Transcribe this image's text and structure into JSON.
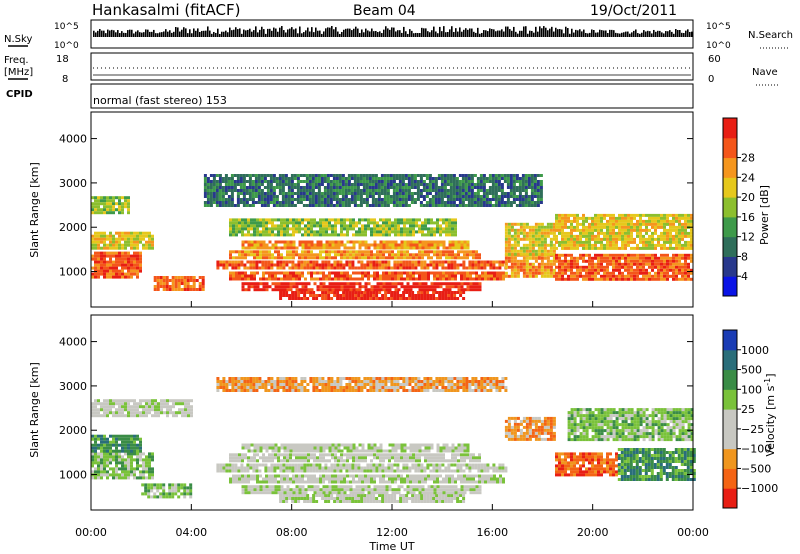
{
  "header": {
    "station": "Hankasalmi (fitACF)",
    "beam": "Beam 04",
    "date": "19/Oct/2011"
  },
  "top_panels": {
    "nsky": {
      "label": "N.Sky",
      "ticks_left": [
        "10^5",
        "10^0"
      ],
      "ticks_right": [
        "10^5",
        "10^0"
      ],
      "right_label": "N.Search"
    },
    "freq": {
      "label_line1": "Freq.",
      "label_line2": "[MHz]",
      "ticks_left": [
        "18",
        "8"
      ],
      "ticks_right": [
        "60",
        "0"
      ],
      "right_label": "Nave"
    },
    "cpid": {
      "label": "CPID",
      "text": "normal (fast stereo) 153"
    }
  },
  "chart_data": [
    {
      "type": "heatmap",
      "name": "power",
      "ylabel": "Slant Range [km]",
      "xlabel": "",
      "yticks": [
        "1000",
        "2000",
        "3000",
        "4000"
      ],
      "xlim": [
        0,
        24
      ],
      "ylim": [
        200,
        4600
      ],
      "colorbar": {
        "title": "Power [dB]",
        "ticks": [
          "4",
          "8",
          "12",
          "16",
          "20",
          "24",
          "28"
        ],
        "colors": [
          "#0a14e6",
          "#28388c",
          "#2f6e5a",
          "#3e9a4a",
          "#8cbf2e",
          "#e6c81c",
          "#f5961e",
          "#f4561a",
          "#e81e14"
        ]
      },
      "bands": [
        {
          "r0": 360,
          "r1": 560,
          "t0": 7.5,
          "t1": 14.8,
          "level": 8
        },
        {
          "r0": 620,
          "r1": 760,
          "t0": 6.0,
          "t1": 15.5,
          "level": 8
        },
        {
          "r0": 820,
          "r1": 1000,
          "t0": 5.5,
          "t1": 16.5,
          "level": 7
        },
        {
          "r0": 1050,
          "r1": 1250,
          "t0": 5.0,
          "t1": 16.5,
          "level": 7
        },
        {
          "r0": 1300,
          "r1": 1480,
          "t0": 5.5,
          "t1": 15.5,
          "level": 6
        },
        {
          "r0": 1560,
          "r1": 1700,
          "t0": 6.0,
          "t1": 15.0,
          "level": 6
        },
        {
          "r0": 900,
          "r1": 1450,
          "t0": 0.0,
          "t1": 2.0,
          "level": 7
        },
        {
          "r0": 1500,
          "r1": 1900,
          "t0": 0.0,
          "t1": 2.5,
          "level": 5
        },
        {
          "r0": 2300,
          "r1": 2700,
          "t0": 0.0,
          "t1": 1.5,
          "level": 4
        },
        {
          "r0": 600,
          "r1": 900,
          "t0": 2.5,
          "t1": 4.5,
          "level": 7
        },
        {
          "r0": 900,
          "r1": 1400,
          "t0": 16.5,
          "t1": 18.5,
          "level": 6
        },
        {
          "r0": 1400,
          "r1": 2100,
          "t0": 16.5,
          "t1": 18.5,
          "level": 5
        },
        {
          "r0": 800,
          "r1": 1400,
          "t0": 18.5,
          "t1": 24.0,
          "level": 7
        },
        {
          "r0": 1500,
          "r1": 2300,
          "t0": 18.5,
          "t1": 24.0,
          "level": 5
        },
        {
          "r0": 2500,
          "r1": 3200,
          "t0": 4.5,
          "t1": 18.0,
          "level": 2
        },
        {
          "r0": 1800,
          "r1": 2200,
          "t0": 5.5,
          "t1": 14.5,
          "level": 4
        }
      ]
    },
    {
      "type": "heatmap",
      "name": "velocity",
      "ylabel": "Slant Range [km]",
      "xlabel": "Time UT",
      "xticks": [
        "00:00",
        "04:00",
        "08:00",
        "12:00",
        "16:00",
        "20:00",
        "00:00"
      ],
      "yticks": [
        "1000",
        "2000",
        "3000",
        "4000"
      ],
      "xlim": [
        0,
        24
      ],
      "ylim": [
        200,
        4600
      ],
      "colorbar": {
        "title": "Velocity [m s",
        "title_sup": "-1",
        "title_end": "]",
        "ticks": [
          "1000",
          "500",
          "100",
          "25",
          "−25",
          "−100",
          "−500",
          "−1000"
        ],
        "colors": [
          "#1a3cb4",
          "#2a6e7a",
          "#3a8c46",
          "#7ac23a",
          "#c8c8c2",
          "#c8c8c2",
          "#f0961e",
          "#f46414",
          "#e81e14"
        ]
      },
      "bands": [
        {
          "r0": 360,
          "r1": 560,
          "t0": 7.5,
          "t1": 14.8,
          "level": 4
        },
        {
          "r0": 620,
          "r1": 760,
          "t0": 6.0,
          "t1": 15.5,
          "level": 4
        },
        {
          "r0": 820,
          "r1": 1000,
          "t0": 5.5,
          "t1": 16.5,
          "level": 4
        },
        {
          "r0": 1050,
          "r1": 1250,
          "t0": 5.0,
          "t1": 16.5,
          "level": 4
        },
        {
          "r0": 1300,
          "r1": 1480,
          "t0": 5.5,
          "t1": 15.5,
          "level": 4
        },
        {
          "r0": 1560,
          "r1": 1700,
          "t0": 6.0,
          "t1": 15.0,
          "level": 4
        },
        {
          "r0": 2300,
          "r1": 2700,
          "t0": 0.0,
          "t1": 4.0,
          "level": 4
        },
        {
          "r0": 900,
          "r1": 1500,
          "t0": 0.0,
          "t1": 2.5,
          "level": 3
        },
        {
          "r0": 1500,
          "r1": 1900,
          "t0": 0.0,
          "t1": 2.0,
          "level": 2
        },
        {
          "r0": 500,
          "r1": 800,
          "t0": 2.0,
          "t1": 4.0,
          "level": 3
        },
        {
          "r0": 1000,
          "r1": 1500,
          "t0": 18.5,
          "t1": 21.0,
          "level": 7
        },
        {
          "r0": 1800,
          "r1": 2300,
          "t0": 16.5,
          "t1": 18.5,
          "level": 6
        },
        {
          "r0": 900,
          "r1": 1600,
          "t0": 21.0,
          "t1": 24.0,
          "level": 2
        },
        {
          "r0": 1800,
          "r1": 2500,
          "t0": 19.0,
          "t1": 24.0,
          "level": 3
        },
        {
          "r0": 2900,
          "r1": 3200,
          "t0": 5.0,
          "t1": 16.5,
          "level": 6
        }
      ]
    }
  ]
}
